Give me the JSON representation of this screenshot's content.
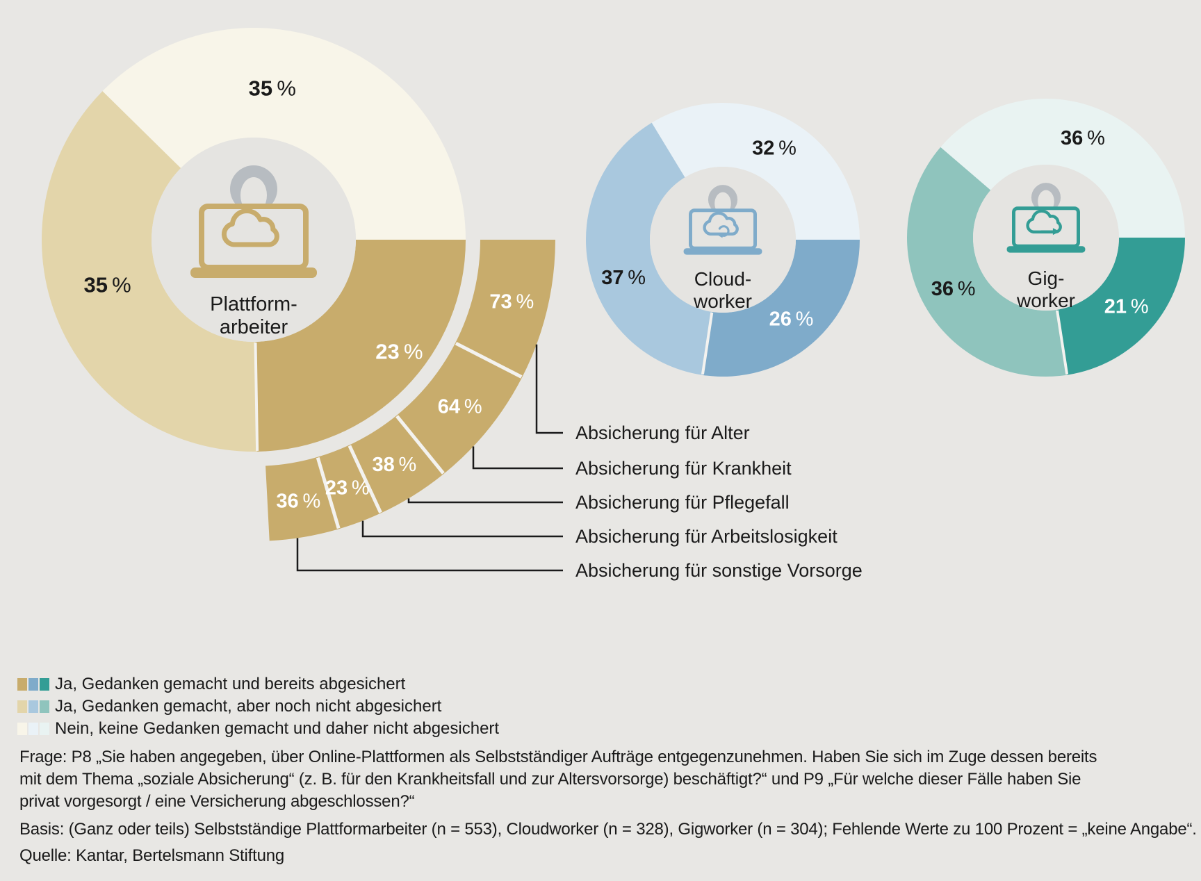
{
  "colors": {
    "background": "#E8E7E4",
    "hole": "#E5E4E1",
    "text": "#1A1A1A",
    "person": "#B7BCC1",
    "separator": "#F3F2EF",
    "callout_line": "#1A1A1A"
  },
  "chart_data": {
    "type": "donut-multi",
    "unit": "%",
    "groups": [
      {
        "name_lines": [
          "Plattform-",
          "arbeiter"
        ],
        "icon": "laptop-cloud-icon",
        "n": 553,
        "segments": [
          {
            "category": "Ja, Gedanken gemacht und bereits abgesichert",
            "value": 23,
            "color": "#C8AC6C",
            "label_color": "#FFFFFF"
          },
          {
            "category": "Ja, Gedanken gemacht, aber noch nicht abgesichert",
            "value": 35,
            "color": "#E3D5AA",
            "label_color": "#1A1A1A"
          },
          {
            "category": "Nein, keine Gedanken gemacht und daher nicht abgesichert",
            "value": 35,
            "color": "#F8F5E9",
            "label_color": "#1A1A1A"
          }
        ]
      },
      {
        "name_lines": [
          "Cloud-",
          "worker"
        ],
        "icon": "laptop-cloud-sync-icon",
        "n": 328,
        "segments": [
          {
            "category": "Ja, Gedanken gemacht und bereits abgesichert",
            "value": 26,
            "color": "#7FABCA",
            "label_color": "#FFFFFF"
          },
          {
            "category": "Ja, Gedanken gemacht, aber noch nicht abgesichert",
            "value": 37,
            "color": "#A9C8DE",
            "label_color": "#1A1A1A"
          },
          {
            "category": "Nein, keine Gedanken gemacht und daher nicht abgesichert",
            "value": 32,
            "color": "#EAF2F7",
            "label_color": "#1A1A1A"
          }
        ]
      },
      {
        "name_lines": [
          "Gig-",
          "worker"
        ],
        "icon": "laptop-cloud-arrow-icon",
        "n": 304,
        "segments": [
          {
            "category": "Ja, Gedanken gemacht und bereits abgesichert",
            "value": 21,
            "color": "#339D95",
            "label_color": "#FFFFFF"
          },
          {
            "category": "Ja, Gedanken gemacht, aber noch nicht abgesichert",
            "value": 36,
            "color": "#8FC4BD",
            "label_color": "#1A1A1A"
          },
          {
            "category": "Nein, keine Gedanken gemacht und daher nicht abgesichert",
            "value": 36,
            "color": "#E9F3F2",
            "label_color": "#1A1A1A"
          }
        ]
      }
    ],
    "breakdown": {
      "parent_group": "Plattformarbeiter, bereits abgesichert",
      "color": "#C8AC6C",
      "items": [
        {
          "label": "Absicherung für Alter",
          "value": 73
        },
        {
          "label": "Absicherung für Krankheit",
          "value": 64
        },
        {
          "label": "Absicherung für Pflegefall",
          "value": 38
        },
        {
          "label": "Absicherung für Arbeitslosigkeit",
          "value": 23
        },
        {
          "label": "Absicherung für sonstige Vorsorge",
          "value": 36
        }
      ]
    }
  },
  "legend": {
    "items": [
      {
        "label": "Ja, Gedanken gemacht und bereits abgesichert",
        "swatches": [
          "#C8AC6C",
          "#7FABCA",
          "#339D95"
        ]
      },
      {
        "label": "Ja, Gedanken gemacht, aber noch nicht abgesichert",
        "swatches": [
          "#E3D5AA",
          "#A9C8DE",
          "#8FC4BD"
        ]
      },
      {
        "label": "Nein, keine Gedanken gemacht und daher nicht abgesichert",
        "swatches": [
          "#F8F5E9",
          "#EAF2F7",
          "#E9F3F2"
        ]
      }
    ]
  },
  "footnotes": {
    "frage_lines": [
      "Frage: P8 „Sie haben angegeben, über Online-Plattformen als Selbstständiger Aufträge entgegenzunehmen. Haben Sie sich im Zuge dessen bereits",
      "mit dem Thema „soziale Absicherung“ (z. B. für den Krankheitsfall und zur Altersvorsorge) beschäftigt?“ und P9 „Für welche dieser Fälle haben Sie",
      "privat vorgesorgt / eine Versicherung abgeschlossen?“"
    ],
    "basis": "Basis: (Ganz oder teils) Selbstständige Plattformarbeiter (n = 553), Cloudworker (n = 328), Gigworker (n = 304); Fehlende Werte zu 100 Prozent = „keine Angabe“.",
    "quelle": "Quelle: Kantar, Bertelsmann Stiftung"
  }
}
